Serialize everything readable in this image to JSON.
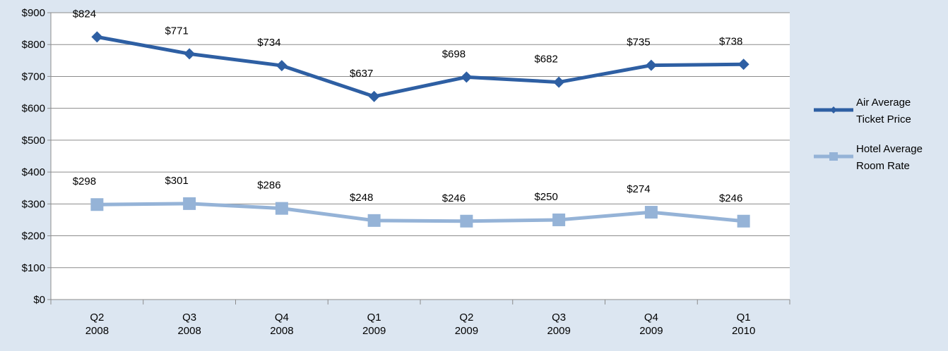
{
  "chart_data": {
    "type": "line",
    "categories": [
      [
        "Q2",
        "2008"
      ],
      [
        "Q3",
        "2008"
      ],
      [
        "Q4",
        "2008"
      ],
      [
        "Q1",
        "2009"
      ],
      [
        "Q2",
        "2009"
      ],
      [
        "Q3",
        "2009"
      ],
      [
        "Q4",
        "2009"
      ],
      [
        "Q1",
        "2010"
      ]
    ],
    "series": [
      {
        "name": "Air Average Ticket Price",
        "color": "#2e5fa3",
        "marker": "diamond",
        "values": [
          824,
          771,
          734,
          637,
          698,
          682,
          735,
          738
        ],
        "value_labels": [
          "$824",
          "$771",
          "$734",
          "$637",
          "$698",
          "$682",
          "$735",
          "$738"
        ]
      },
      {
        "name": "Hotel Average Room Rate",
        "color": "#95b3d7",
        "marker": "square",
        "values": [
          298,
          301,
          286,
          248,
          246,
          250,
          274,
          246
        ],
        "value_labels": [
          "$298",
          "$301",
          "$286",
          "$248",
          "$246",
          "$250",
          "$274",
          "$246"
        ]
      }
    ],
    "ylim": [
      0,
      900
    ],
    "yticks": [
      {
        "value": 0,
        "label": "$0"
      },
      {
        "value": 100,
        "label": "$100"
      },
      {
        "value": 200,
        "label": "$200"
      },
      {
        "value": 300,
        "label": "$300"
      },
      {
        "value": 400,
        "label": "$400"
      },
      {
        "value": 500,
        "label": "$500"
      },
      {
        "value": 600,
        "label": "$600"
      },
      {
        "value": 700,
        "label": "$700"
      },
      {
        "value": 800,
        "label": "$800"
      },
      {
        "value": 900,
        "label": "$900"
      }
    ],
    "grid": true,
    "legend": "right"
  }
}
